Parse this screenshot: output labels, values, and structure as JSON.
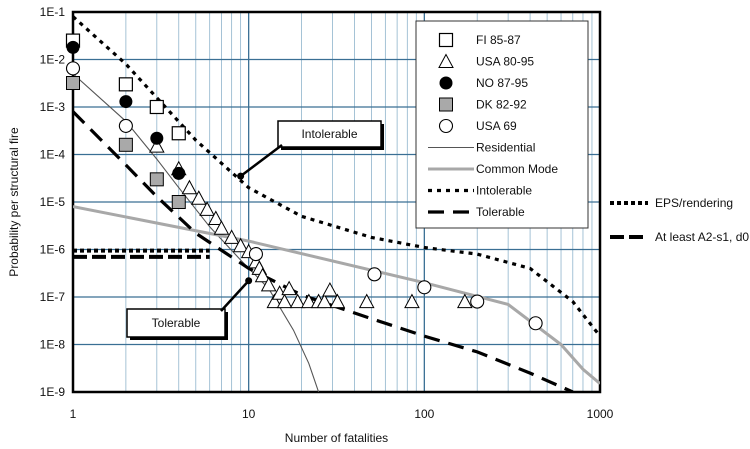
{
  "chart_data": {
    "type": "scatter",
    "xlabel": "Number of fatalities",
    "ylabel": "Probability per structural fire",
    "xscale": "log",
    "yscale": "log",
    "xlim": [
      1,
      1000
    ],
    "ylim": [
      1e-09,
      0.1
    ],
    "grid": true,
    "legend_position": "top-right",
    "x_tick_labels": [
      "1",
      "10",
      "100",
      "1000"
    ],
    "y_tick_labels": [
      "1E-1",
      "1E-2",
      "1E-3",
      "1E-4",
      "1E-5",
      "1E-6",
      "1E-7",
      "1E-8",
      "1E-9"
    ],
    "series": [
      {
        "name": "FI 85-87",
        "marker": "square-open",
        "points": [
          [
            1,
            0.025
          ],
          [
            2,
            0.003
          ],
          [
            3,
            0.001
          ],
          [
            4,
            0.00028
          ]
        ]
      },
      {
        "name": "USA 80-95",
        "marker": "triangle-open",
        "points": [
          [
            3,
            0.00015
          ],
          [
            4,
            5e-05
          ],
          [
            4.6,
            2e-05
          ],
          [
            5.2,
            1.2e-05
          ],
          [
            5.8,
            7e-06
          ],
          [
            6.5,
            4.5e-06
          ],
          [
            7,
            2.8e-06
          ],
          [
            8,
            1.8e-06
          ],
          [
            9,
            1.2e-06
          ],
          [
            10,
            9e-07
          ],
          [
            11,
            5.5e-07
          ],
          [
            11.5,
            4e-07
          ],
          [
            12,
            2.8e-07
          ],
          [
            13,
            1.8e-07
          ],
          [
            14,
            8e-08
          ],
          [
            15,
            1.2e-07
          ],
          [
            16,
            8e-08
          ],
          [
            17,
            1.5e-07
          ],
          [
            19,
            8e-08
          ],
          [
            22,
            8e-08
          ],
          [
            25,
            8e-08
          ],
          [
            27,
            8e-08
          ],
          [
            29,
            1.4e-07
          ],
          [
            32,
            8e-08
          ],
          [
            47,
            8e-08
          ],
          [
            85,
            8e-08
          ],
          [
            170,
            8e-08
          ]
        ]
      },
      {
        "name": "NO 87-95",
        "marker": "circle-filled",
        "points": [
          [
            1,
            0.018
          ],
          [
            2,
            0.0013
          ],
          [
            3,
            0.00022
          ],
          [
            4,
            4e-05
          ]
        ]
      },
      {
        "name": "DK 82-92",
        "marker": "square-gray",
        "points": [
          [
            1,
            0.0032
          ],
          [
            2,
            0.00016
          ],
          [
            3,
            3e-05
          ],
          [
            4,
            1e-05
          ]
        ]
      },
      {
        "name": "USA 69",
        "marker": "circle-open",
        "points": [
          [
            1,
            0.0065
          ],
          [
            2,
            0.0004
          ],
          [
            11,
            8e-07
          ],
          [
            52,
            3e-07
          ],
          [
            100,
            1.6e-07
          ],
          [
            200,
            8e-08
          ],
          [
            430,
            2.8e-08
          ]
        ]
      }
    ],
    "lines": [
      {
        "name": "Residential",
        "style": "thin-solid",
        "points": [
          [
            1,
            0.005
          ],
          [
            2,
            0.0005
          ],
          [
            3,
            8e-05
          ],
          [
            4,
            2e-05
          ],
          [
            6,
            3e-06
          ],
          [
            9,
            6e-07
          ],
          [
            13,
            1.5e-07
          ],
          [
            18,
            2e-08
          ],
          [
            22,
            4e-09
          ],
          [
            25,
            1e-09
          ]
        ]
      },
      {
        "name": "Common Mode",
        "style": "thick-gray",
        "points": [
          [
            1,
            8e-06
          ],
          [
            10,
            1.5e-06
          ],
          [
            100,
            2e-07
          ],
          [
            300,
            7e-08
          ],
          [
            600,
            1e-08
          ],
          [
            800,
            3e-09
          ],
          [
            1000,
            1.5e-09
          ]
        ]
      },
      {
        "name": "Intolerable",
        "style": "dotted",
        "points": [
          [
            1,
            0.08
          ],
          [
            2,
            0.008
          ],
          [
            5,
            0.0002
          ],
          [
            10,
            2e-05
          ],
          [
            20,
            5e-06
          ],
          [
            50,
            1.8e-06
          ],
          [
            100,
            1.1e-06
          ],
          [
            200,
            8e-07
          ],
          [
            400,
            4e-07
          ],
          [
            700,
            8e-08
          ],
          [
            1000,
            1.5e-08
          ]
        ]
      },
      {
        "name": "Tolerable",
        "style": "dashed",
        "points": [
          [
            1,
            0.0008
          ],
          [
            2,
            6e-05
          ],
          [
            3,
            1.3e-05
          ],
          [
            5,
            2.2e-06
          ],
          [
            10,
            4e-07
          ],
          [
            20,
            1.1e-07
          ],
          [
            50,
            3.5e-08
          ],
          [
            100,
            1.5e-08
          ],
          [
            200,
            7e-09
          ],
          [
            400,
            2.5e-09
          ],
          [
            700,
            1e-09
          ]
        ]
      },
      {
        "name": "EPS/rendering",
        "style": "dotted-short",
        "points": [
          [
            1,
            9.5e-07
          ],
          [
            6,
            9.5e-07
          ]
        ]
      },
      {
        "name": "At least A2-s1, d0",
        "style": "dashed-short",
        "points": [
          [
            1,
            7e-07
          ],
          [
            6,
            7e-07
          ]
        ]
      }
    ],
    "annotations": [
      {
        "text": "Intolerable",
        "arrow_to": [
          9,
          3.5e-05
        ]
      },
      {
        "text": "Tolerable",
        "arrow_to": [
          10,
          2.2e-07
        ]
      }
    ],
    "outside_legend": [
      "EPS/rendering",
      "At least A2-s1, d0"
    ]
  }
}
